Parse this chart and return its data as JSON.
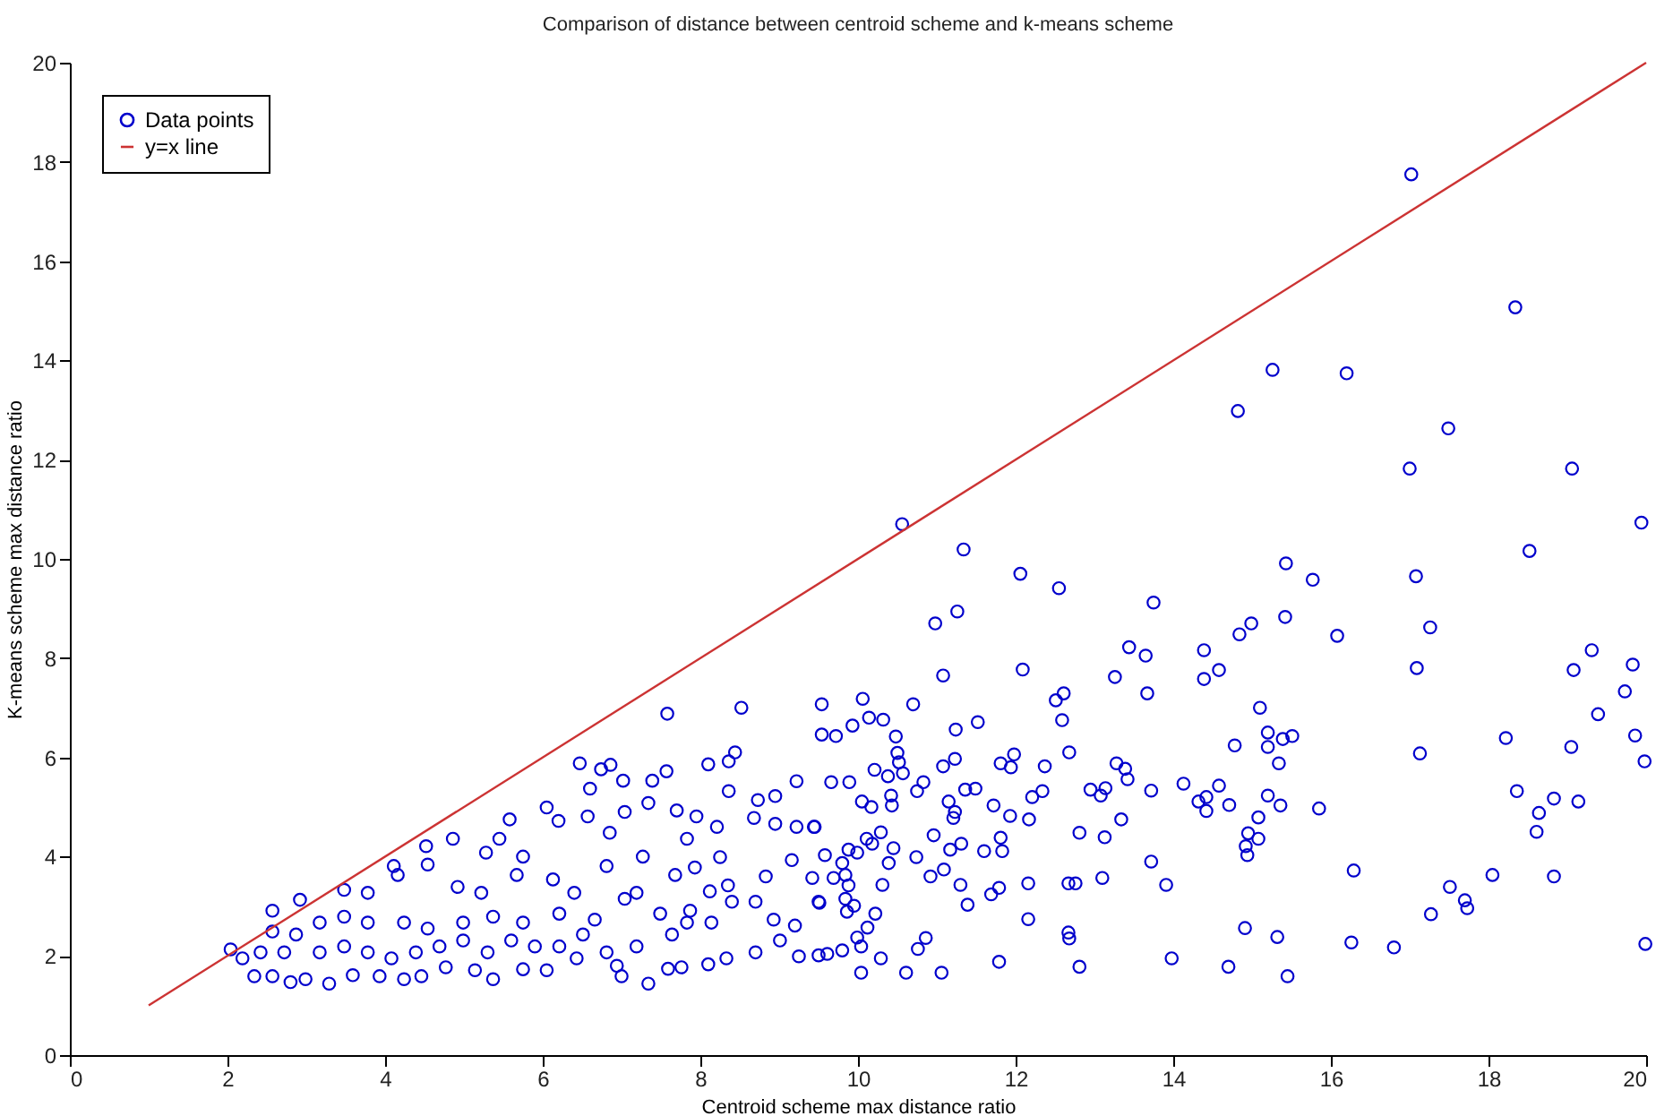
{
  "chart_data": {
    "type": "scatter",
    "title": "Comparison of distance between centroid scheme and k-means scheme",
    "xlabel": "Centroid scheme max distance ratio",
    "ylabel": "K-means scheme max distance ratio",
    "xlim": [
      0,
      20
    ],
    "xticks": [
      0,
      2,
      4,
      6,
      8,
      10,
      12,
      14,
      16,
      18,
      20
    ],
    "ylim": [
      0,
      20
    ],
    "yticks": [
      0,
      2,
      4,
      6,
      8,
      10,
      12,
      14,
      16,
      18,
      20
    ],
    "legend": "top left",
    "series": [
      {
        "name": "Data points",
        "marker": "circle",
        "color": "#0000cc",
        "x": [
          17.02,
          18.34,
          15.26,
          16.2,
          14.82,
          17.49,
          17.0,
          19.06,
          19.94,
          10.56,
          11.34,
          18.52,
          15.43,
          12.06,
          15.77,
          17.08,
          12.55,
          13.75,
          10.98,
          11.26,
          14.84,
          14.99,
          15.42,
          16.08,
          17.26,
          13.44,
          13.65,
          14.39,
          11.08,
          12.09,
          13.26,
          13.67,
          14.39,
          14.58,
          17.09,
          19.31,
          19.08,
          19.83,
          19.73,
          19.39,
          19.86,
          19.98,
          19.05,
          18.22,
          17.13,
          15.1,
          15.2,
          15.2,
          15.51,
          15.39,
          15.34,
          14.78,
          15.85,
          15.2,
          15.36,
          15.08,
          14.95,
          15.08,
          14.92,
          14.94,
          14.58,
          14.71,
          14.42,
          14.32,
          14.42,
          14.13,
          13.72,
          13.42,
          13.28,
          13.39,
          12.95,
          13.08,
          13.14,
          13.34,
          12.81,
          13.13,
          13.72,
          13.91,
          13.1,
          12.67,
          12.76,
          12.67,
          12.68,
          12.81,
          13.98,
          14.7,
          14.91,
          15.32,
          15.45,
          16.26,
          16.29,
          16.8,
          17.27,
          17.51,
          17.7,
          17.73,
          18.05,
          18.36,
          18.64,
          18.61,
          18.83,
          19.14,
          18.83,
          19.99,
          12.68,
          12.59,
          12.51,
          12.61,
          12.37,
          12.34,
          12.21,
          12.17,
          11.98,
          11.94,
          11.81,
          11.93,
          11.72,
          11.81,
          11.83,
          11.6,
          12.16,
          12.16,
          11.79,
          11.69,
          11.79,
          11.52,
          11.24,
          11.23,
          11.08,
          11.49,
          11.36,
          11.15,
          11.23,
          11.21,
          10.96,
          11.31,
          11.17,
          11.39,
          11.3,
          11.09,
          10.92,
          10.74,
          10.86,
          10.76,
          11.06,
          10.61,
          10.29,
          10.04,
          10.04,
          9.99,
          10.12,
          10.22,
          10.31,
          10.39,
          10.45,
          10.29,
          10.18,
          10.11,
          9.99,
          9.88,
          9.8,
          9.84,
          9.88,
          9.84,
          9.95,
          9.86,
          9.8,
          9.61,
          9.51,
          9.69,
          9.58,
          9.45,
          9.42,
          10.75,
          10.83,
          10.7,
          10.06,
          10.14,
          10.32,
          9.93,
          10.48,
          10.5,
          10.52,
          10.57,
          10.38,
          10.21,
          10.05,
          10.17,
          10.42,
          10.43,
          9.89,
          9.66,
          9.54,
          9.54,
          9.72,
          2.04,
          8.52,
          7.58,
          8.44,
          8.36,
          8.1,
          7.57,
          7.39,
          7.02,
          6.86,
          6.74,
          6.47,
          6.6,
          6.05,
          5.58,
          4.86,
          4.52,
          4.11,
          3.48,
          2.92,
          2.57,
          9.22,
          8.95,
          8.73,
          8.36,
          7.95,
          7.7,
          7.34,
          7.04,
          6.57,
          6.2,
          9.44,
          9.22,
          8.95,
          8.68,
          8.21,
          7.83,
          7.27,
          6.85,
          5.75,
          5.45,
          5.28,
          9.16,
          8.83,
          8.35,
          8.12,
          7.93,
          7.68,
          7.19,
          6.81,
          6.4,
          6.13,
          5.67,
          5.22,
          4.92,
          4.54,
          4.16,
          3.78,
          9.5,
          8.7,
          8.4,
          8.14,
          7.83,
          7.49,
          7.04,
          6.66,
          6.21,
          5.75,
          5.37,
          4.99,
          4.54,
          4.24,
          3.78,
          3.48,
          3.17,
          9.01,
          8.7,
          8.33,
          8.1,
          7.76,
          7.59,
          7.34,
          7.0,
          6.94,
          7.19,
          6.81,
          6.43,
          6.05,
          5.75,
          5.37,
          5.14,
          4.77,
          4.46,
          4.24,
          3.93,
          3.59,
          3.29,
          2.99,
          2.8,
          2.57,
          2.34,
          2.19,
          2.42,
          2.72,
          2.87,
          3.17,
          3.48,
          3.78,
          4.08,
          4.39,
          4.69,
          4.99,
          5.3,
          5.6,
          5.9,
          6.21,
          6.51,
          7.64,
          7.87,
          9.5,
          9.25,
          8.93,
          9.2,
          8.25,
          2.57
        ],
        "values": [
          17.75,
          15.07,
          13.81,
          13.74,
          12.98,
          12.63,
          11.82,
          11.82,
          10.73,
          10.7,
          10.19,
          10.16,
          9.91,
          9.7,
          9.58,
          9.65,
          9.41,
          9.12,
          8.7,
          8.94,
          8.48,
          8.7,
          8.83,
          8.45,
          8.62,
          8.22,
          8.05,
          8.16,
          7.65,
          7.77,
          7.62,
          7.29,
          7.58,
          7.76,
          7.8,
          8.16,
          7.76,
          7.87,
          7.33,
          6.87,
          6.44,
          5.92,
          6.21,
          6.39,
          6.08,
          7.0,
          6.5,
          6.21,
          6.43,
          6.37,
          5.88,
          6.24,
          4.97,
          5.23,
          5.03,
          4.79,
          4.47,
          4.36,
          4.21,
          4.03,
          5.43,
          5.04,
          5.2,
          5.11,
          4.92,
          5.47,
          5.33,
          5.56,
          5.88,
          5.77,
          5.35,
          5.23,
          5.38,
          4.75,
          4.48,
          4.39,
          3.9,
          3.43,
          3.57,
          3.46,
          3.46,
          2.47,
          2.35,
          1.78,
          1.95,
          1.78,
          2.56,
          2.38,
          1.59,
          2.27,
          3.72,
          2.17,
          2.84,
          3.39,
          3.12,
          2.96,
          3.63,
          5.32,
          4.88,
          4.5,
          5.17,
          5.11,
          3.6,
          2.24,
          6.1,
          6.75,
          7.15,
          7.29,
          5.82,
          5.32,
          5.2,
          4.75,
          6.06,
          5.8,
          5.88,
          4.82,
          5.03,
          4.38,
          4.11,
          4.11,
          3.46,
          2.74,
          3.37,
          3.24,
          1.88,
          6.71,
          6.56,
          5.97,
          5.82,
          5.37,
          5.35,
          5.11,
          4.9,
          4.78,
          4.43,
          4.26,
          4.14,
          3.03,
          3.43,
          3.74,
          3.6,
          3.99,
          2.36,
          2.14,
          1.66,
          1.66,
          1.95,
          1.66,
          2.19,
          2.37,
          2.57,
          2.85,
          3.43,
          3.87,
          4.17,
          4.49,
          4.26,
          4.36,
          4.08,
          4.14,
          3.87,
          3.63,
          3.42,
          3.15,
          3.01,
          2.89,
          2.11,
          2.04,
          3.07,
          3.57,
          4.03,
          4.6,
          3.57,
          5.32,
          5.5,
          7.07,
          7.18,
          6.8,
          6.76,
          6.64,
          6.42,
          6.09,
          5.9,
          5.68,
          5.62,
          5.75,
          5.11,
          5.0,
          5.23,
          5.03,
          5.5,
          5.5,
          7.07,
          6.46,
          6.43,
          2.13,
          7.0,
          6.88,
          6.1,
          5.92,
          5.86,
          5.72,
          5.53,
          5.53,
          5.85,
          5.76,
          5.88,
          5.37,
          4.99,
          4.75,
          4.36,
          4.21,
          3.81,
          3.33,
          3.13,
          2.49,
          5.52,
          5.22,
          5.14,
          5.32,
          4.81,
          4.93,
          5.08,
          4.9,
          4.81,
          4.72,
          4.6,
          4.6,
          4.66,
          4.78,
          4.6,
          4.36,
          4.0,
          4.48,
          4.0,
          4.36,
          4.08,
          3.93,
          3.6,
          3.42,
          3.3,
          3.78,
          3.63,
          3.27,
          3.81,
          3.27,
          3.54,
          3.63,
          3.27,
          3.39,
          3.84,
          3.63,
          3.27,
          3.09,
          3.09,
          3.09,
          2.67,
          2.67,
          2.85,
          3.15,
          2.73,
          2.85,
          2.67,
          2.79,
          2.67,
          2.55,
          2.67,
          2.67,
          2.79,
          2.67,
          2.31,
          2.07,
          1.95,
          1.83,
          1.77,
          1.74,
          1.44,
          1.59,
          1.8,
          2.19,
          2.07,
          1.95,
          1.71,
          1.73,
          1.53,
          1.71,
          1.77,
          1.59,
          1.53,
          1.59,
          1.61,
          1.44,
          1.53,
          1.47,
          1.59,
          1.59,
          1.95,
          2.07,
          2.07,
          2.43,
          2.07,
          2.19,
          2.07,
          1.95,
          2.07,
          2.19,
          2.31,
          2.07,
          2.31,
          2.19,
          2.19,
          2.43,
          2.43,
          2.91,
          2.01,
          1.99,
          2.73,
          2.61,
          3.99,
          2.91
        ]
      },
      {
        "name": "y=x line",
        "type": "line",
        "color": "#cc3333",
        "x": [
          1,
          20
        ],
        "values": [
          1,
          20
        ]
      }
    ]
  }
}
